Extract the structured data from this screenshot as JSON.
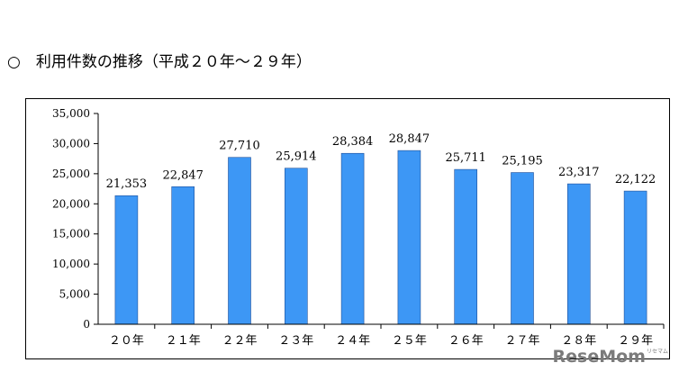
{
  "heading": "○　利用件数の推移（平成２０年～２９年）",
  "watermark": "ReseMom",
  "watermark_sub": "リセマム",
  "chart_data": {
    "type": "bar",
    "title": "",
    "xlabel": "",
    "ylabel": "",
    "categories": [
      "２０年",
      "２１年",
      "２２年",
      "２３年",
      "２４年",
      "２５年",
      "２６年",
      "２７年",
      "２８年",
      "２９年"
    ],
    "values": [
      21353,
      22847,
      27710,
      25914,
      28384,
      28847,
      25711,
      25195,
      23317,
      22122
    ],
    "value_labels": [
      "21,353",
      "22,847",
      "27,710",
      "25,914",
      "28,384",
      "28,847",
      "25,711",
      "25,195",
      "23,317",
      "22,122"
    ],
    "ylim": [
      0,
      35000
    ],
    "yticks": [
      0,
      5000,
      10000,
      15000,
      20000,
      25000,
      30000,
      35000
    ],
    "ytick_labels": [
      "0",
      "5,000",
      "10,000",
      "15,000",
      "20,000",
      "25,000",
      "30,000",
      "35,000"
    ],
    "grid": false,
    "legend": "none",
    "bar_color": "#3d97f5"
  }
}
